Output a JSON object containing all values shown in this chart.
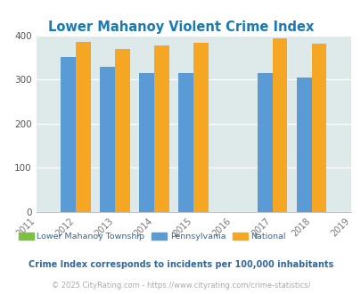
{
  "title": "Lower Mahanoy Violent Crime Index",
  "all_years": [
    2011,
    2012,
    2013,
    2014,
    2015,
    2016,
    2017,
    2018,
    2019
  ],
  "data_years": [
    2012,
    2013,
    2014,
    2015,
    2017,
    2018
  ],
  "lower_mahanoy": [
    0,
    0,
    0,
    0,
    0,
    0
  ],
  "pennsylvania": [
    350,
    328,
    314,
    314,
    314,
    305
  ],
  "national": [
    386,
    368,
    376,
    383,
    394,
    381
  ],
  "color_local": "#7dc142",
  "color_pa": "#5b9bd5",
  "color_nat": "#f5a623",
  "bg_color": "#e8f2f2",
  "plot_bg": "#deeaea",
  "title_color": "#1a7ab5",
  "legend_text_color": "#336699",
  "note_color": "#336699",
  "footer_color": "#aaaaaa",
  "ylim": [
    0,
    400
  ],
  "yticks": [
    0,
    100,
    200,
    300,
    400
  ],
  "xlim": [
    2011,
    2019
  ],
  "legend_labels": [
    "Lower Mahanoy Township",
    "Pennsylvania",
    "National"
  ],
  "note": "Crime Index corresponds to incidents per 100,000 inhabitants",
  "footer": "© 2025 CityRating.com - https://www.cityrating.com/crime-statistics/",
  "bar_width": 0.38,
  "figsize": [
    4.06,
    3.3
  ],
  "dpi": 100
}
